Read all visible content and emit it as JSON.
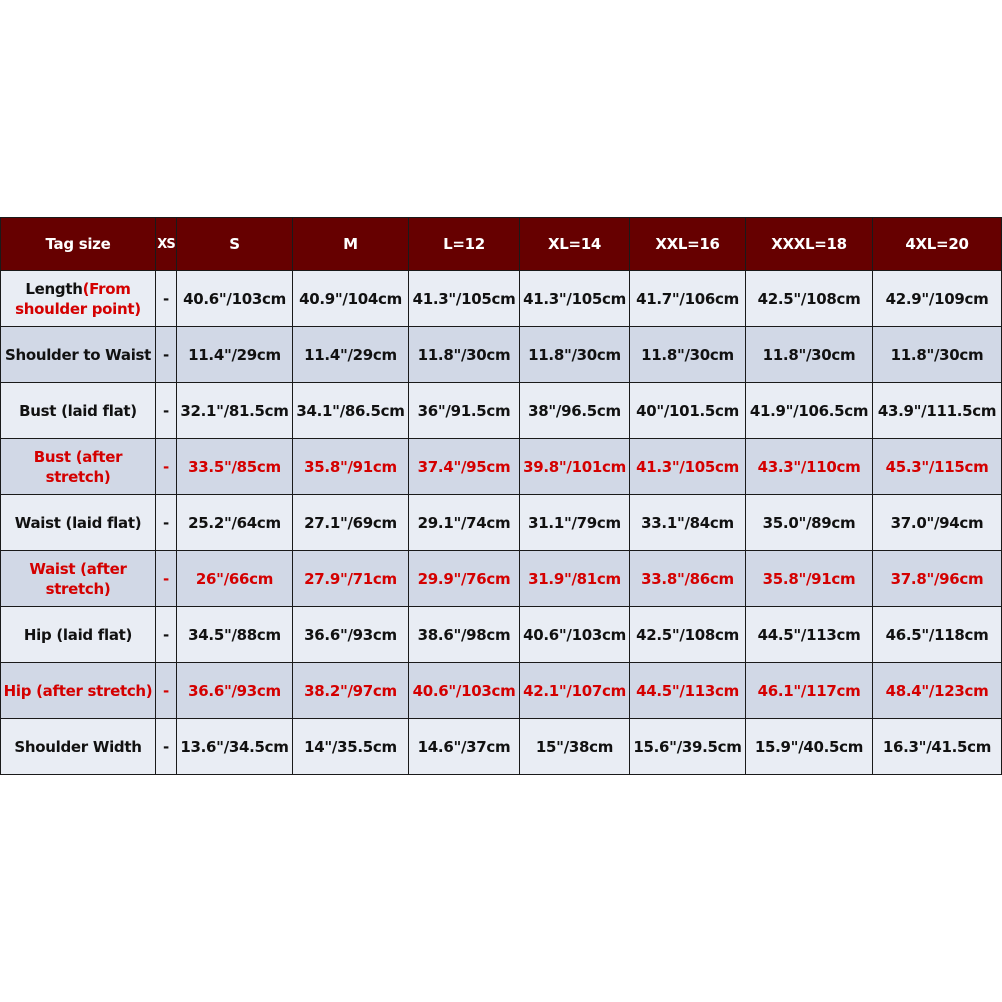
{
  "headers": [
    "Tag size",
    "XS",
    "S",
    "M",
    "L=12",
    "XL=14",
    "XXL=16",
    "XXXL=18",
    "4XL=20"
  ],
  "colors": {
    "header_bg": "#660000",
    "highlight_text": "#d40000",
    "row_light": "#e9edf4",
    "row_dark": "#d1d8e6"
  },
  "rows": [
    {
      "label": "Length",
      "label_note": "(From shoulder point)",
      "highlight": false,
      "values": [
        "-",
        "40.6\"/103cm",
        "40.9\"/104cm",
        "41.3\"/105cm",
        "41.3\"/105cm",
        "41.7\"/106cm",
        "42.5\"/108cm",
        "42.9\"/109cm"
      ]
    },
    {
      "label": "Shoulder to Waist",
      "highlight": false,
      "values": [
        "-",
        "11.4\"/29cm",
        "11.4\"/29cm",
        "11.8\"/30cm",
        "11.8\"/30cm",
        "11.8\"/30cm",
        "11.8\"/30cm",
        "11.8\"/30cm"
      ]
    },
    {
      "label": "Bust (laid flat)",
      "highlight": false,
      "values": [
        "-",
        "32.1\"/81.5cm",
        "34.1\"/86.5cm",
        "36\"/91.5cm",
        "38\"/96.5cm",
        "40\"/101.5cm",
        "41.9\"/106.5cm",
        "43.9\"/111.5cm"
      ]
    },
    {
      "label": "Bust (after stretch)",
      "highlight": true,
      "values": [
        "-",
        "33.5\"/85cm",
        "35.8\"/91cm",
        "37.4\"/95cm",
        "39.8\"/101cm",
        "41.3\"/105cm",
        "43.3\"/110cm",
        "45.3\"/115cm"
      ]
    },
    {
      "label": "Waist (laid flat)",
      "highlight": false,
      "values": [
        "-",
        "25.2\"/64cm",
        "27.1\"/69cm",
        "29.1\"/74cm",
        "31.1\"/79cm",
        "33.1\"/84cm",
        "35.0\"/89cm",
        "37.0\"/94cm"
      ]
    },
    {
      "label": "Waist (after stretch)",
      "highlight": true,
      "values": [
        "-",
        "26\"/66cm",
        "27.9\"/71cm",
        "29.9\"/76cm",
        "31.9\"/81cm",
        "33.8\"/86cm",
        "35.8\"/91cm",
        "37.8\"/96cm"
      ]
    },
    {
      "label": "Hip (laid flat)",
      "highlight": false,
      "values": [
        "-",
        "34.5\"/88cm",
        "36.6\"/93cm",
        "38.6\"/98cm",
        "40.6\"/103cm",
        "42.5\"/108cm",
        "44.5\"/113cm",
        "46.5\"/118cm"
      ]
    },
    {
      "label": "Hip (after stretch)",
      "highlight": true,
      "values": [
        "-",
        "36.6\"/93cm",
        "38.2\"/97cm",
        "40.6\"/103cm",
        "42.1\"/107cm",
        "44.5\"/113cm",
        "46.1\"/117cm",
        "48.4\"/123cm"
      ]
    },
    {
      "label": "Shoulder Width",
      "highlight": false,
      "values": [
        "-",
        "13.6\"/34.5cm",
        "14\"/35.5cm",
        "14.6\"/37cm",
        "15\"/38cm",
        "15.6\"/39.5cm",
        "15.9\"/40.5cm",
        "16.3\"/41.5cm"
      ]
    }
  ]
}
